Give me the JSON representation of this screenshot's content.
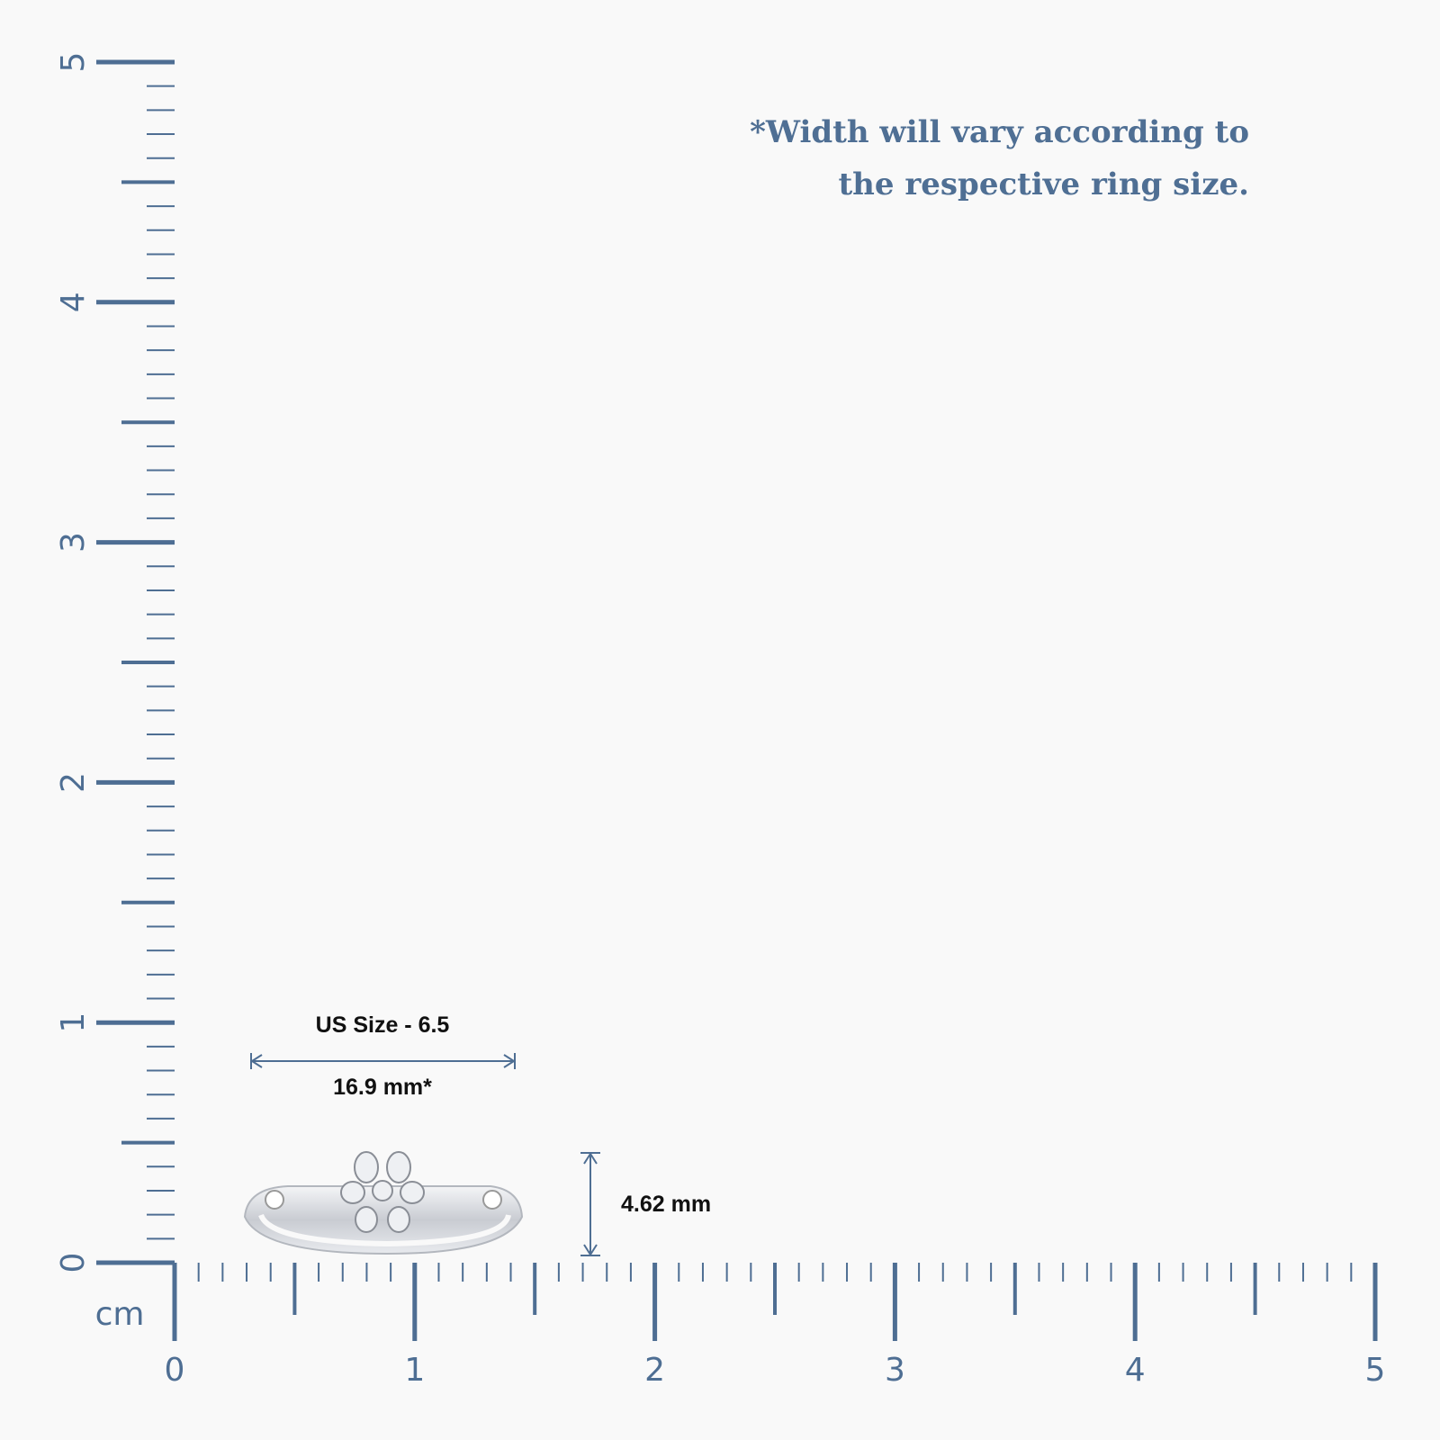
{
  "note": {
    "line1": "*Width will vary according to",
    "line2": "the respective ring size."
  },
  "ruler": {
    "unit": "cm",
    "x_labels": [
      0,
      1,
      2,
      3,
      4,
      5
    ],
    "y_labels": [
      0,
      1,
      2,
      3,
      4,
      5
    ]
  },
  "ring": {
    "size_label": "US Size - 6.5",
    "width_label": "16.9 mm*",
    "height_label": "4.62 mm"
  }
}
